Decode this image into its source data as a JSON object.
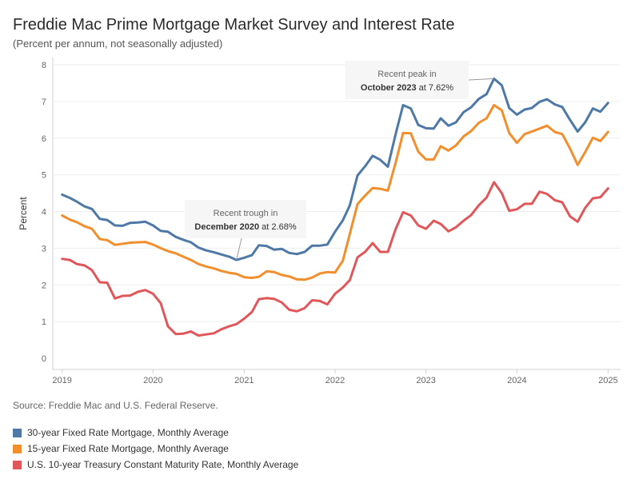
{
  "header": {
    "title": "Freddie Mac Prime Mortgage Market Survey and Interest Rate",
    "subtitle": "(Percent per annum, not seasonally adjusted)"
  },
  "source": "Source: Freddie Mac and U.S. Federal Reserve.",
  "legend": [
    {
      "label": "30-year Fixed Rate Mortgage, Monthly Average",
      "color": "#4e79a7"
    },
    {
      "label": "15-year Fixed Rate Mortgage, Monthly Average",
      "color": "#f28e2b"
    },
    {
      "label": "U.S. 10-year Treasury Constant Maturity Rate, Monthly Average",
      "color": "#e15759"
    }
  ],
  "chart_data": {
    "type": "line",
    "ylabel": "Percent",
    "ylim": [
      0,
      8
    ],
    "yticks": [
      0,
      1,
      2,
      3,
      4,
      5,
      6,
      7,
      8
    ],
    "xlim": [
      "2018-12-01",
      "2025-02-01"
    ],
    "xticks": [
      "2019",
      "2020",
      "2021",
      "2022",
      "2023",
      "2024",
      "2025"
    ],
    "grid": true,
    "x": [
      "2019-01",
      "2019-02",
      "2019-03",
      "2019-04",
      "2019-05",
      "2019-06",
      "2019-07",
      "2019-08",
      "2019-09",
      "2019-10",
      "2019-11",
      "2019-12",
      "2020-01",
      "2020-02",
      "2020-03",
      "2020-04",
      "2020-05",
      "2020-06",
      "2020-07",
      "2020-08",
      "2020-09",
      "2020-10",
      "2020-11",
      "2020-12",
      "2021-01",
      "2021-02",
      "2021-03",
      "2021-04",
      "2021-05",
      "2021-06",
      "2021-07",
      "2021-08",
      "2021-09",
      "2021-10",
      "2021-11",
      "2021-12",
      "2022-01",
      "2022-02",
      "2022-03",
      "2022-04",
      "2022-05",
      "2022-06",
      "2022-07",
      "2022-08",
      "2022-09",
      "2022-10",
      "2022-11",
      "2022-12",
      "2023-01",
      "2023-02",
      "2023-03",
      "2023-04",
      "2023-05",
      "2023-06",
      "2023-07",
      "2023-08",
      "2023-09",
      "2023-10",
      "2023-11",
      "2023-12",
      "2024-01",
      "2024-02",
      "2024-03",
      "2024-04",
      "2024-05",
      "2024-06",
      "2024-07",
      "2024-08",
      "2024-09",
      "2024-10",
      "2024-11",
      "2024-12",
      "2025-01"
    ],
    "series": [
      {
        "name": "30-year Fixed Rate Mortgage, Monthly Average",
        "color": "#4e79a7",
        "values": [
          4.46,
          4.37,
          4.27,
          4.14,
          4.07,
          3.8,
          3.77,
          3.62,
          3.61,
          3.69,
          3.7,
          3.72,
          3.62,
          3.47,
          3.45,
          3.31,
          3.23,
          3.16,
          3.02,
          2.94,
          2.89,
          2.83,
          2.77,
          2.68,
          2.74,
          2.81,
          3.08,
          3.06,
          2.96,
          2.98,
          2.87,
          2.84,
          2.9,
          3.07,
          3.07,
          3.1,
          3.45,
          3.76,
          4.17,
          4.98,
          5.23,
          5.52,
          5.41,
          5.22,
          6.11,
          6.9,
          6.81,
          6.36,
          6.27,
          6.26,
          6.54,
          6.34,
          6.43,
          6.71,
          6.84,
          7.07,
          7.2,
          7.62,
          7.44,
          6.82,
          6.64,
          6.78,
          6.82,
          6.99,
          7.06,
          6.92,
          6.85,
          6.5,
          6.18,
          6.43,
          6.81,
          6.72,
          6.96
        ]
      },
      {
        "name": "15-year Fixed Rate Mortgage, Monthly Average",
        "color": "#f28e2b",
        "values": [
          3.89,
          3.78,
          3.71,
          3.6,
          3.53,
          3.25,
          3.22,
          3.09,
          3.12,
          3.15,
          3.16,
          3.17,
          3.1,
          3.0,
          2.92,
          2.86,
          2.77,
          2.68,
          2.57,
          2.5,
          2.45,
          2.38,
          2.33,
          2.3,
          2.21,
          2.19,
          2.22,
          2.37,
          2.35,
          2.27,
          2.23,
          2.15,
          2.14,
          2.2,
          2.31,
          2.35,
          2.34,
          2.66,
          3.39,
          4.2,
          4.43,
          4.64,
          4.62,
          4.57,
          5.33,
          6.14,
          6.13,
          5.63,
          5.42,
          5.42,
          5.78,
          5.66,
          5.8,
          6.05,
          6.19,
          6.42,
          6.54,
          6.9,
          6.76,
          6.14,
          5.87,
          6.11,
          6.18,
          6.26,
          6.34,
          6.17,
          6.11,
          5.72,
          5.27,
          5.62,
          6.01,
          5.92,
          6.17
        ]
      },
      {
        "name": "U.S. 10-year Treasury Constant Maturity Rate, Monthly Average",
        "color": "#e15759",
        "values": [
          2.71,
          2.68,
          2.57,
          2.53,
          2.4,
          2.07,
          2.06,
          1.63,
          1.7,
          1.71,
          1.81,
          1.86,
          1.76,
          1.5,
          0.87,
          0.66,
          0.67,
          0.73,
          0.62,
          0.65,
          0.68,
          0.79,
          0.87,
          0.93,
          1.08,
          1.26,
          1.61,
          1.64,
          1.62,
          1.52,
          1.32,
          1.28,
          1.37,
          1.58,
          1.56,
          1.47,
          1.76,
          1.93,
          2.13,
          2.75,
          2.9,
          3.14,
          2.9,
          2.9,
          3.52,
          3.98,
          3.89,
          3.62,
          3.53,
          3.75,
          3.66,
          3.46,
          3.57,
          3.75,
          3.9,
          4.17,
          4.38,
          4.8,
          4.5,
          4.02,
          4.06,
          4.21,
          4.21,
          4.54,
          4.48,
          4.31,
          4.25,
          3.87,
          3.72,
          4.1,
          4.36,
          4.39,
          4.63
        ]
      }
    ],
    "annotations": [
      {
        "line1": "Recent trough in",
        "line2_bold": "December 2020",
        "line2_rest": " at 2.68%",
        "x": "2020-12",
        "y": 2.68
      },
      {
        "line1": "Recent peak in",
        "line2_bold": "October 2023",
        "line2_rest": " at 7.62%",
        "x": "2023-10",
        "y": 7.62
      }
    ]
  }
}
